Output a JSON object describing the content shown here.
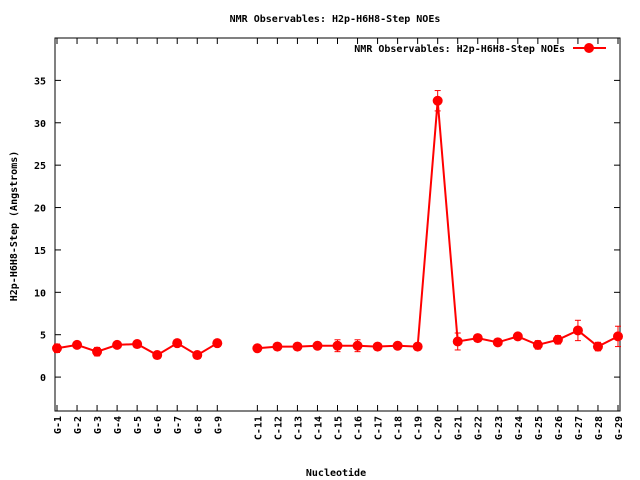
{
  "chart_data": {
    "type": "line",
    "title": "NMR Observables: H2p-H6H8-Step NOEs",
    "xlabel": "Nucleotide",
    "ylabel": "H2p-H6H8-Step (Angstroms)",
    "ylim": [
      -4,
      40
    ],
    "yticks": [
      0,
      5,
      10,
      15,
      20,
      25,
      30,
      35
    ],
    "grid": false,
    "legend": "top-right",
    "categories": [
      "G-1",
      "G-2",
      "G-3",
      "G-4",
      "G-5",
      "G-6",
      "G-7",
      "G-8",
      "G-9",
      "C-11",
      "C-12",
      "C-13",
      "C-14",
      "C-15",
      "C-16",
      "C-17",
      "C-18",
      "C-19",
      "C-20",
      "G-21",
      "G-22",
      "G-23",
      "G-24",
      "G-25",
      "G-26",
      "G-27",
      "G-28",
      "G-29"
    ],
    "x": [
      1,
      2,
      3,
      4,
      5,
      6,
      7,
      8,
      9,
      11,
      12,
      13,
      14,
      15,
      16,
      17,
      18,
      19,
      20,
      21,
      22,
      23,
      24,
      25,
      26,
      27,
      28,
      29
    ],
    "series": [
      {
        "name": "NMR Observables: H2p-H6H8-Step NOEs",
        "color": "#ff0000",
        "values": [
          3.4,
          3.8,
          3.0,
          3.8,
          3.9,
          2.6,
          4.0,
          2.6,
          4.0,
          3.4,
          3.6,
          3.6,
          3.7,
          3.7,
          3.7,
          3.6,
          3.7,
          3.6,
          32.6,
          4.2,
          4.6,
          4.1,
          4.8,
          3.8,
          4.4,
          5.5,
          3.6,
          4.8
        ],
        "errors": [
          0.5,
          0.3,
          0.5,
          0.3,
          0.3,
          0.3,
          0.3,
          0.3,
          0.3,
          0.3,
          0.4,
          0.4,
          0.4,
          0.7,
          0.7,
          0.3,
          0.4,
          0.3,
          1.2,
          1.0,
          0.4,
          0.4,
          0.4,
          0.5,
          0.5,
          1.2,
          0.5,
          1.2
        ],
        "gap_after_index": 8
      }
    ]
  }
}
